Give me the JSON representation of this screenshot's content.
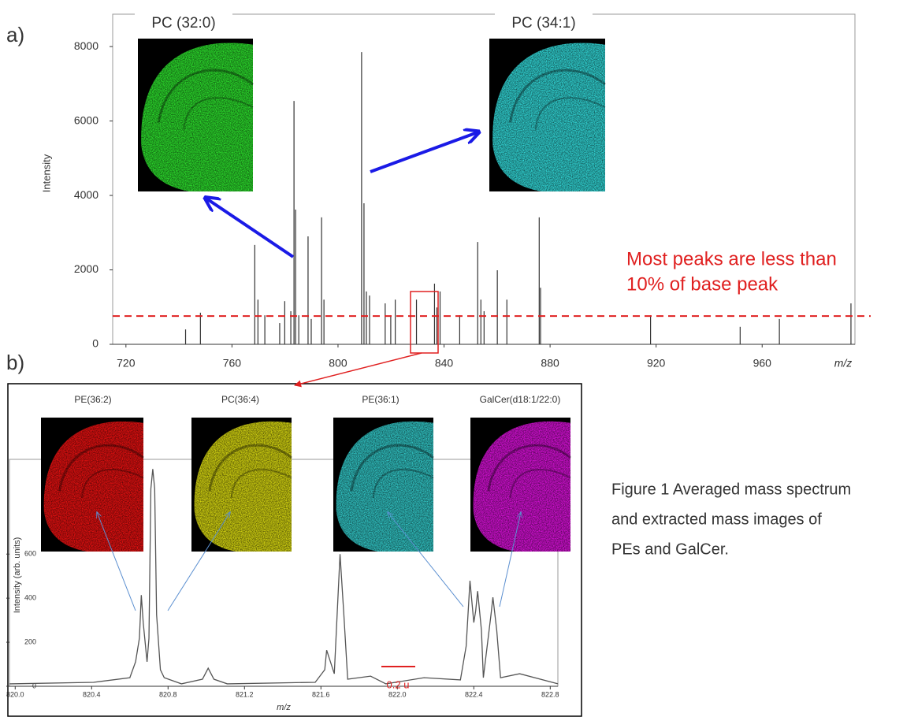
{
  "panel_labels": [
    "a)",
    "b)"
  ],
  "caption": [
    "Figure 1 Averaged mass spectrum",
    "and extracted mass images of",
    "PEs and GalCer."
  ],
  "chart_data": [
    {
      "type": "spectrum",
      "y_label": "Intensity",
      "x_label": "m/z",
      "x": [
        742.5,
        748.1,
        768.6,
        769.8,
        772.4,
        778.0,
        779.9,
        782.2,
        783.4,
        784.0,
        785.2,
        788.7,
        789.9,
        793.8,
        794.7,
        808.9,
        809.8,
        810.7,
        811.9,
        817.8,
        819.9,
        821.6,
        829.6,
        836.4,
        837.3,
        838.5,
        845.9,
        852.7,
        853.9,
        855.1,
        860.1,
        863.7,
        875.9,
        876.4,
        917.9,
        951.7,
        966.5,
        993.5
      ],
      "values": [
        400,
        850,
        2670,
        1200,
        780,
        570,
        1160,
        890,
        6540,
        3620,
        780,
        2900,
        680,
        3410,
        1200,
        7850,
        3790,
        1420,
        1310,
        1100,
        780,
        1200,
        1200,
        1630,
        990,
        1420,
        780,
        2750,
        1200,
        890,
        1990,
        1200,
        3410,
        1520,
        780,
        470,
        680,
        1100
      ],
      "color": "#333333",
      "xlim": [
        715,
        995
      ],
      "ylim": [
        0,
        8870
      ],
      "xticks": [
        720,
        760,
        800,
        840,
        880,
        920,
        960
      ],
      "yticks": [
        0,
        2000,
        4000,
        6000,
        8000
      ],
      "threshold": 760,
      "threshold_color": "#e02020",
      "annotation": [
        "Most peaks are less than",
        "10% of base peak"
      ],
      "insets": [
        {
          "name": "PC (32:0)",
          "color": "#2ee62e"
        },
        {
          "name": "PC (34:1)",
          "color": "#33dddd"
        }
      ]
    },
    {
      "type": "line",
      "y_label": "Intensity (arb. units)",
      "x_label": "m/z",
      "x": [
        819.97,
        820.41,
        820.6,
        820.63,
        820.65,
        820.66,
        820.67,
        820.69,
        820.7,
        820.71,
        820.72,
        820.73,
        820.74,
        820.76,
        820.78,
        820.87,
        820.98,
        821.01,
        821.04,
        821.11,
        821.57,
        821.62,
        821.63,
        821.67,
        821.7,
        821.72,
        821.74,
        821.86,
        821.94,
        822.14,
        822.33,
        822.36,
        822.38,
        822.4,
        822.41,
        822.42,
        822.44,
        822.45,
        822.49,
        822.5,
        822.52,
        822.54,
        822.64,
        822.84
      ],
      "values": [
        11,
        18,
        39,
        111,
        218,
        414,
        289,
        111,
        218,
        896,
        986,
        896,
        325,
        75,
        39,
        11,
        32,
        82,
        32,
        11,
        18,
        75,
        164,
        57,
        600,
        325,
        32,
        46,
        11,
        39,
        29,
        182,
        479,
        289,
        343,
        432,
        254,
        39,
        325,
        404,
        254,
        39,
        57,
        11
      ],
      "color": "#555555",
      "xlim": [
        819.97,
        822.84
      ],
      "ylim": [
        0,
        1030
      ],
      "xticks": [
        {
          "value": 820,
          "label": "820.0"
        },
        820.4,
        820.8,
        821.2,
        821.6,
        {
          "value": 822,
          "label": "822.0"
        },
        822.4,
        822.8
      ],
      "yticks": [
        0,
        200,
        400,
        600
      ],
      "scale_label": "0.2 u",
      "insets": [
        {
          "name": "PE(36:2)",
          "color": "#ee1111"
        },
        {
          "name": "PC(36:4)",
          "color": "#dddd11"
        },
        {
          "name": "PE(36:1)",
          "color": "#33cccc"
        },
        {
          "name": "GalCer(d18:1/22:0)",
          "color": "#dd11dd"
        }
      ]
    }
  ]
}
